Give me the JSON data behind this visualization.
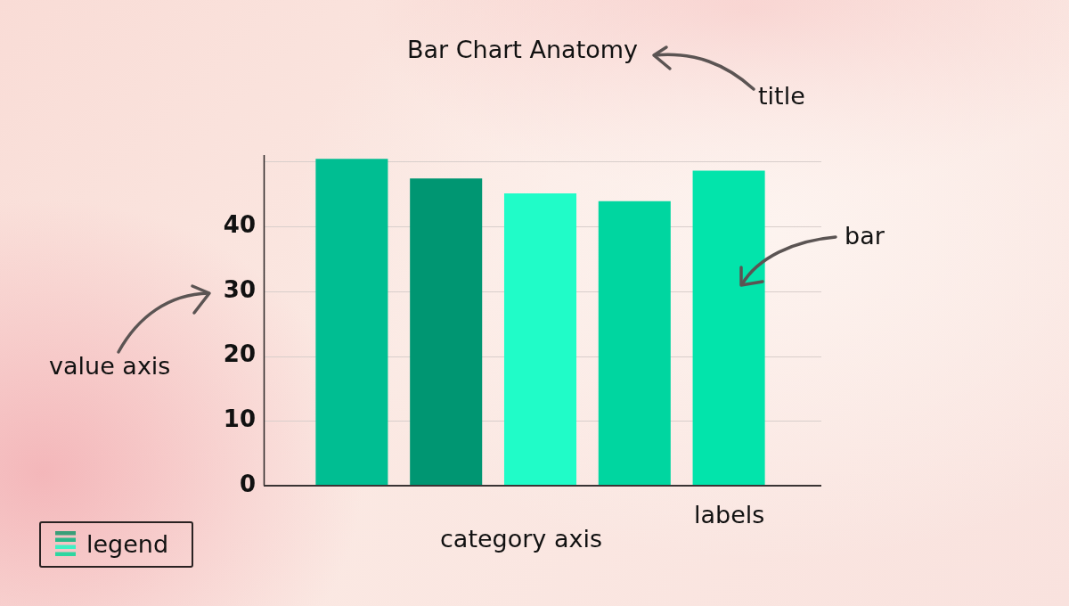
{
  "chart_data": {
    "type": "bar",
    "title": "Bar Chart Anatomy",
    "categories": [
      null,
      null,
      null,
      null,
      null
    ],
    "values": [
      50.4,
      47.4,
      45.1,
      43.9,
      48.6
    ],
    "colors": [
      "#00be92",
      "#009672",
      "#20fcc8",
      "#00d6a0",
      "#02e4ab"
    ],
    "ylim": [
      0,
      51
    ],
    "yticks": [
      0,
      10,
      20,
      30,
      40,
      {
        "value": 50,
        "label": null
      }
    ],
    "grid": "y",
    "annotations": [
      "title",
      "bar",
      "value axis",
      "labels",
      "category axis",
      "legend"
    ]
  }
}
